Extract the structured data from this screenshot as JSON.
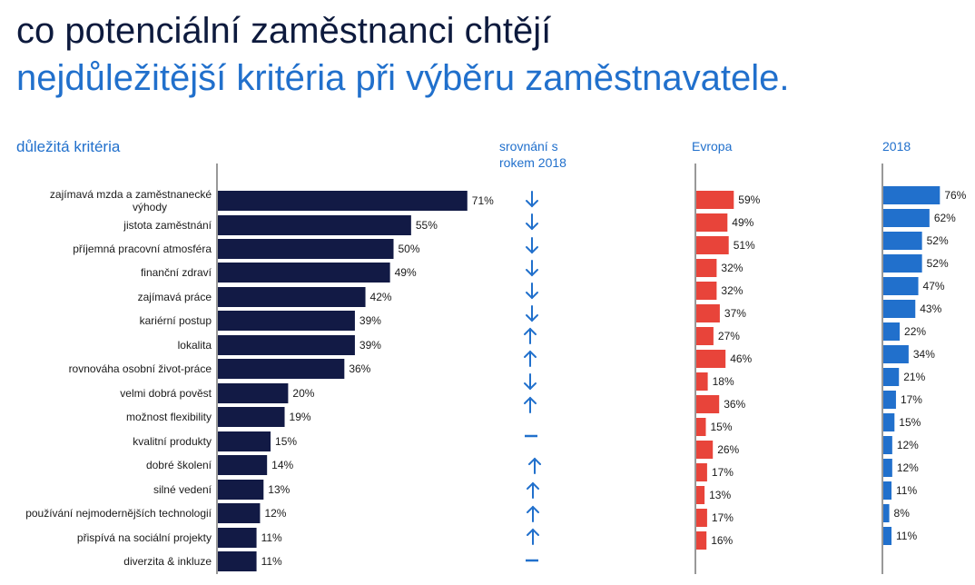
{
  "title_line1": "co potenciální zaměstnanci chtějí",
  "title_line2": "nejdůležitější kritéria při výběru zaměstnavatele.",
  "section_label": "důležitá kritéria",
  "comparison_header": "srovnání s rokem 2018",
  "europe_header": "Evropa",
  "y2018_header": "2018",
  "colors": {
    "main": "#121a45",
    "europe": "#e8443a",
    "y2018": "#2170cc",
    "arrow": "#2170cc"
  },
  "chart_data": [
    {
      "type": "bar",
      "title": "důležitá kritéria",
      "orientation": "horizontal",
      "categories": [
        "zajímavá mzda a zaměstnanecké výhody",
        "jistota zaměstnání",
        "příjemná pracovní atmosféra",
        "finanční zdraví",
        "zajímavá práce",
        "kariérní postup",
        "lokalita",
        "rovnováha osobní život-práce",
        "velmi dobrá pověst",
        "možnost flexibility",
        "kvalitní produkty",
        "dobré školení",
        "silné vedení",
        "používání nejmodernějších technologií",
        "přispívá na sociální projekty",
        "diverzita & inkluze"
      ],
      "values": [
        71,
        55,
        50,
        49,
        42,
        39,
        39,
        36,
        20,
        19,
        15,
        14,
        13,
        12,
        11,
        11
      ],
      "value_labels": [
        "71%",
        "55%",
        "50%",
        "49%",
        "42%",
        "39%",
        "39%",
        "36%",
        "20%",
        "19%",
        "15%",
        "14%",
        "13%",
        "12%",
        "11%",
        "11%"
      ],
      "unit": "%"
    },
    {
      "type": "table",
      "title": "srovnání s rokem 2018",
      "trend": [
        "down",
        "down",
        "down",
        "down",
        "down",
        "down",
        "up",
        "up",
        "down",
        "up",
        "same",
        "up",
        "up",
        "up",
        "up",
        "same"
      ]
    },
    {
      "type": "bar",
      "title": "Evropa",
      "orientation": "horizontal",
      "values": [
        59,
        49,
        51,
        32,
        32,
        37,
        27,
        46,
        18,
        36,
        15,
        26,
        17,
        13,
        17,
        16
      ],
      "value_labels": [
        "59%",
        "49%",
        "51%",
        "32%",
        "32%",
        "37%",
        "27%",
        "46%",
        "18%",
        "36%",
        "15%",
        "26%",
        "17%",
        "13%",
        "17%",
        "16%"
      ],
      "unit": "%"
    },
    {
      "type": "bar",
      "title": "2018",
      "orientation": "horizontal",
      "values": [
        76,
        62,
        52,
        52,
        47,
        43,
        22,
        34,
        21,
        17,
        15,
        12,
        12,
        11,
        8,
        11
      ],
      "value_labels": [
        "76%",
        "62%",
        "52%",
        "52%",
        "47%",
        "43%",
        "22%",
        "34%",
        "21%",
        "17%",
        "15%",
        "12%",
        "12%",
        "11%",
        "8%",
        "11%"
      ],
      "unit": "%"
    }
  ]
}
